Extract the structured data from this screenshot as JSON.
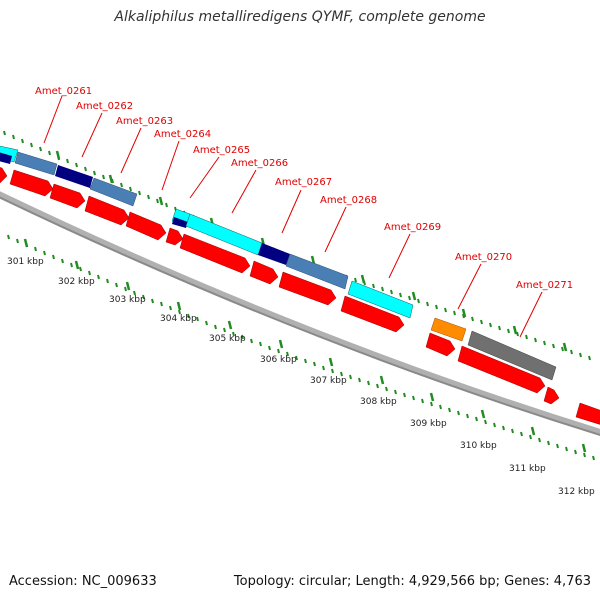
{
  "title": "Alkaliphilus metalliredigens QYMF, complete genome",
  "footer": {
    "accession": "Accession: NC_009633",
    "stats": "Topology: circular; Length: 4,929,566 bp; Genes: 4,763"
  },
  "colors": {
    "cds": "#ff0000",
    "steelblue": "#4a7fb5",
    "navy": "#000080",
    "cyan": "#00ffff",
    "orange": "#ff8c00",
    "gray": "#707070",
    "ticks": "#228b22",
    "label": "#e00000",
    "backbone": "#999999"
  },
  "gene_labels": [
    "Amet_0261",
    "Amet_0262",
    "Amet_0263",
    "Amet_0264",
    "Amet_0265",
    "Amet_0266",
    "Amet_0267",
    "Amet_0268",
    "Amet_0269",
    "Amet_0270",
    "Amet_0271"
  ],
  "kbp_labels": [
    "301 kbp",
    "302 kbp",
    "303 kbp",
    "304 kbp",
    "305 kbp",
    "306 kbp",
    "307 kbp",
    "308 kbp",
    "309 kbp",
    "310 kbp",
    "311 kbp",
    "312 kbp"
  ]
}
